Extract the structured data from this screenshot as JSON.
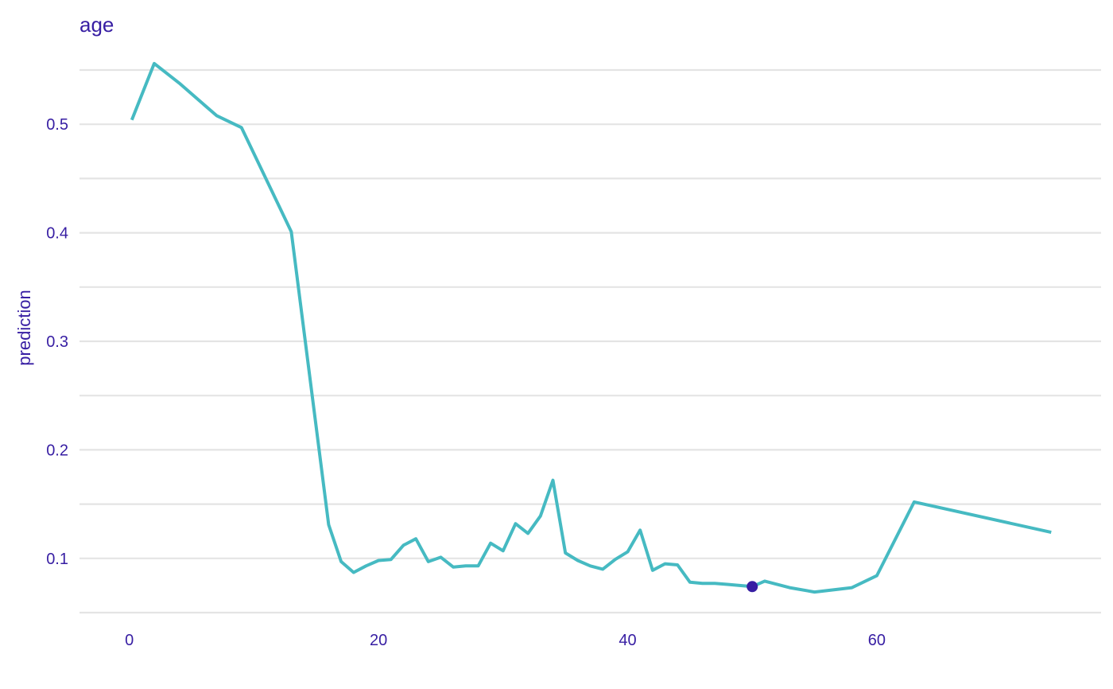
{
  "chart_data": {
    "type": "line",
    "title": "age",
    "xlabel": "",
    "ylabel": "prediction",
    "xlim": [
      -4,
      78
    ],
    "ylim": [
      0.05,
      0.55
    ],
    "x_ticks": [
      0,
      20,
      40,
      60
    ],
    "x_tick_labels": [
      "0",
      "20",
      "40",
      "60"
    ],
    "y_ticks": [
      0.1,
      0.2,
      0.3,
      0.4,
      0.5
    ],
    "y_tick_labels": [
      "0.1",
      "0.2",
      "0.3",
      "0.4",
      "0.5"
    ],
    "grid": true,
    "series": [
      {
        "x": [
          0.2,
          2,
          4,
          7,
          9,
          13,
          16,
          17,
          18,
          19,
          20,
          21,
          22,
          23,
          24,
          25,
          26,
          27,
          28,
          29,
          30,
          31,
          32,
          33,
          34,
          35,
          36,
          37,
          38,
          39,
          40,
          41,
          42,
          43,
          44,
          45,
          46,
          47,
          48,
          49,
          50,
          51,
          53,
          55,
          58,
          60,
          63,
          74
        ],
        "y": [
          0.504,
          0.556,
          0.538,
          0.508,
          0.497,
          0.401,
          0.131,
          0.097,
          0.087,
          0.093,
          0.098,
          0.099,
          0.112,
          0.118,
          0.097,
          0.101,
          0.092,
          0.093,
          0.093,
          0.114,
          0.107,
          0.132,
          0.123,
          0.139,
          0.172,
          0.105,
          0.098,
          0.093,
          0.09,
          0.099,
          0.106,
          0.126,
          0.089,
          0.095,
          0.094,
          0.078,
          0.077,
          0.077,
          0.076,
          0.075,
          0.074,
          0.079,
          0.073,
          0.069,
          0.073,
          0.084,
          0.152,
          0.124
        ]
      }
    ],
    "highlight_point": {
      "x": 50,
      "y": 0.074
    },
    "colors": {
      "line": "#46bac2",
      "point": "#371ea3",
      "text": "#371ea3",
      "grid": "#e4e4e4"
    }
  }
}
